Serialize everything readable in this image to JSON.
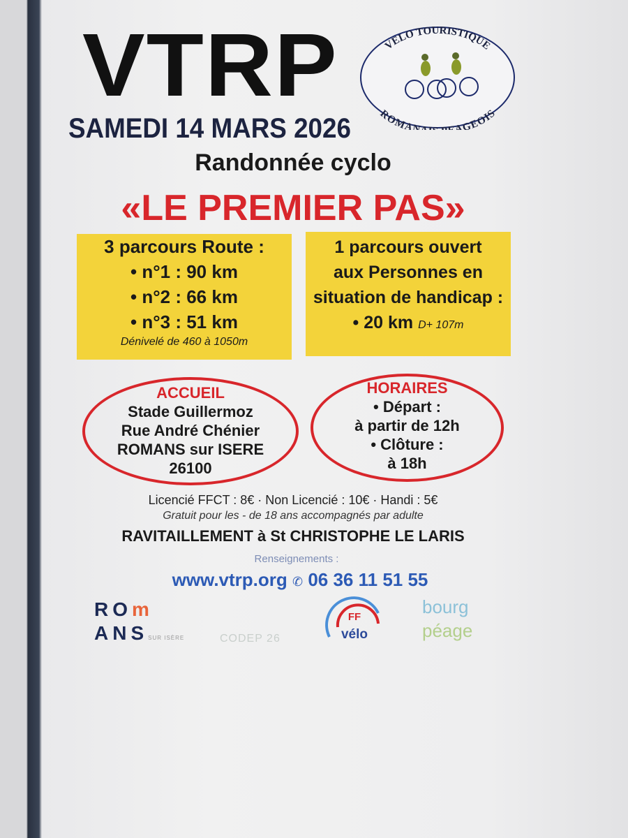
{
  "header": {
    "title": "VTRP",
    "club_logo": {
      "top_text": "VELO TOURISTIQUE",
      "bottom_text": "ROMANAIS PEAGEOIS"
    },
    "date": "SAMEDI 14 MARS 2026",
    "subtitle": "Randonnée cyclo",
    "event_name": "«LE PREMIER PAS»"
  },
  "routes": {
    "heading": "3 parcours Route :",
    "items": [
      "• n°1 : 90 km",
      "• n°2 : 66 km",
      "• n°3 : 51 km"
    ],
    "elevation": "Dénivelé de 460 à 1050m"
  },
  "handicap": {
    "lines": [
      "1 parcours ouvert",
      "aux Personnes en",
      "situation de handicap :"
    ],
    "distance": "• 20 km",
    "elevation": "D+ 107m"
  },
  "accueil": {
    "heading": "ACCUEIL",
    "lines": [
      "Stade Guillermoz",
      "Rue André Chénier",
      "ROMANS sur ISERE",
      "26100"
    ]
  },
  "horaires": {
    "heading": "HORAIRES",
    "lines": [
      "• Départ :",
      "à partir de 12h",
      "• Clôture :",
      "à 18h"
    ]
  },
  "prices": "Licencié FFCT : 8€ · Non Licencié : 10€ · Handi : 5€",
  "free_note": "Gratuit pour les - de 18 ans accompagnés par adulte",
  "ravitaillement": "RAVITAILLEMENT à St CHRISTOPHE LE LARIS",
  "renseignements": "Renseignements :",
  "website": "www.vtrp.org",
  "phone": "06 36 11 51 55",
  "sponsors": {
    "romans": {
      "line1a": "RO",
      "line1b": "m",
      "line2": "ANS",
      "sub": "SUR ISÈRE"
    },
    "codep": "CODEP 26",
    "ffvelo": {
      "ff": "FF",
      "velo": "vélo"
    },
    "bourg": {
      "line1": "bourg",
      "line2": "péage"
    }
  },
  "colors": {
    "accent_red": "#d8262b",
    "box_yellow": "#f3d33a",
    "navy": "#1c2340",
    "link_blue": "#2c5ab5"
  }
}
